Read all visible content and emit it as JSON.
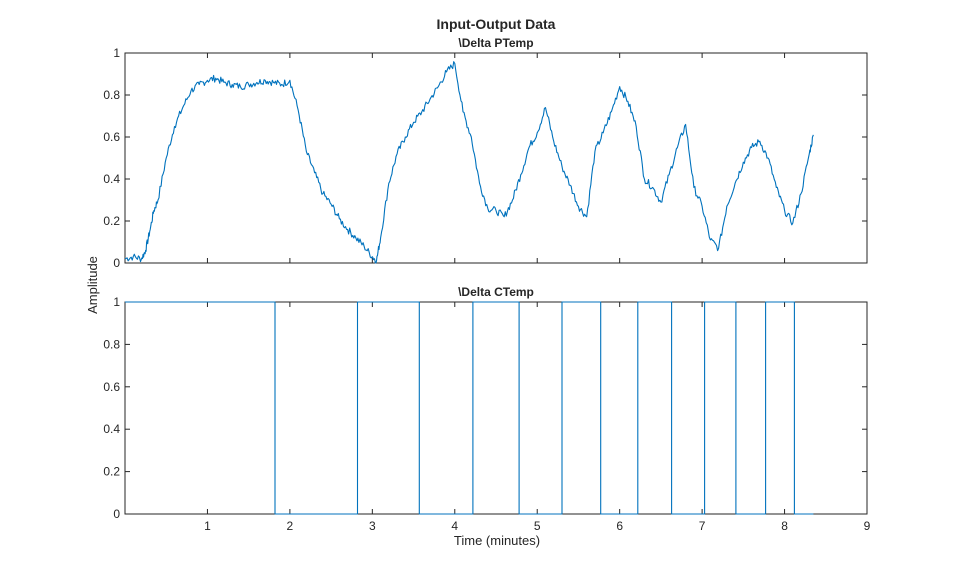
{
  "chart_data": {
    "type": "line",
    "title": "Input-Output Data",
    "xlabel": "Time (minutes)",
    "ylabel": "Amplitude",
    "xlim": [
      0,
      9
    ],
    "x_ticks": [
      "1",
      "2",
      "3",
      "4",
      "5",
      "6",
      "7",
      "8",
      "9"
    ],
    "line_color": "#0072BD",
    "grid": false,
    "panels": [
      {
        "title": "\\Delta PTemp",
        "ylim": [
          0,
          1
        ],
        "y_ticks": [
          "0",
          "0.2",
          "0.4",
          "0.6",
          "0.8",
          "1"
        ],
        "series": [
          {
            "x": [
              0.0,
              0.1,
              0.2,
              0.25,
              0.3,
              0.35,
              0.4,
              0.5,
              0.6,
              0.7,
              0.8,
              0.9,
              1.0,
              1.1,
              1.2,
              1.3,
              1.4,
              1.5,
              1.6,
              1.7,
              1.8,
              1.9,
              2.0,
              2.1,
              2.2,
              2.3,
              2.4,
              2.5,
              2.6,
              2.7,
              2.8,
              2.9,
              3.0,
              3.05,
              3.1,
              3.2,
              3.3,
              3.4,
              3.5,
              3.6,
              3.7,
              3.8,
              3.9,
              4.0,
              4.1,
              4.2,
              4.3,
              4.4,
              4.5,
              4.6,
              4.7,
              4.8,
              4.9,
              5.0,
              5.1,
              5.2,
              5.3,
              5.4,
              5.5,
              5.6,
              5.7,
              5.8,
              5.9,
              6.0,
              6.1,
              6.2,
              6.3,
              6.4,
              6.5,
              6.6,
              6.7,
              6.8,
              6.9,
              7.0,
              7.1,
              7.2,
              7.3,
              7.4,
              7.5,
              7.6,
              7.7,
              7.8,
              7.9,
              8.0,
              8.1,
              8.2,
              8.3,
              8.35
            ],
            "values": [
              0.02,
              0.03,
              0.02,
              0.06,
              0.15,
              0.25,
              0.3,
              0.5,
              0.65,
              0.74,
              0.82,
              0.85,
              0.87,
              0.88,
              0.86,
              0.85,
              0.84,
              0.85,
              0.86,
              0.87,
              0.86,
              0.85,
              0.87,
              0.73,
              0.53,
              0.43,
              0.33,
              0.28,
              0.21,
              0.16,
              0.12,
              0.08,
              0.03,
              0.01,
              0.12,
              0.38,
              0.52,
              0.6,
              0.67,
              0.72,
              0.78,
              0.84,
              0.91,
              0.95,
              0.72,
              0.6,
              0.38,
              0.26,
              0.25,
              0.22,
              0.3,
              0.42,
              0.55,
              0.62,
              0.74,
              0.58,
              0.46,
              0.37,
              0.27,
              0.22,
              0.53,
              0.62,
              0.72,
              0.84,
              0.77,
              0.65,
              0.4,
              0.36,
              0.29,
              0.42,
              0.55,
              0.66,
              0.36,
              0.27,
              0.11,
              0.07,
              0.27,
              0.38,
              0.48,
              0.55,
              0.58,
              0.5,
              0.36,
              0.25,
              0.19,
              0.33,
              0.52,
              0.61
            ]
          }
        ]
      },
      {
        "title": "\\Delta CTemp",
        "ylim": [
          0,
          1
        ],
        "y_ticks": [
          "0",
          "0.2",
          "0.4",
          "0.6",
          "0.8",
          "1"
        ],
        "series": [
          {
            "step": true,
            "x": [
              0.0,
              1.82,
              2.82,
              3.57,
              4.22,
              4.78,
              5.3,
              5.77,
              6.22,
              6.63,
              7.03,
              7.41,
              7.77,
              8.12,
              8.35
            ],
            "values": [
              1,
              0,
              1,
              0,
              1,
              0,
              1,
              0,
              1,
              0,
              1,
              0,
              1,
              0,
              0
            ]
          }
        ]
      }
    ]
  }
}
